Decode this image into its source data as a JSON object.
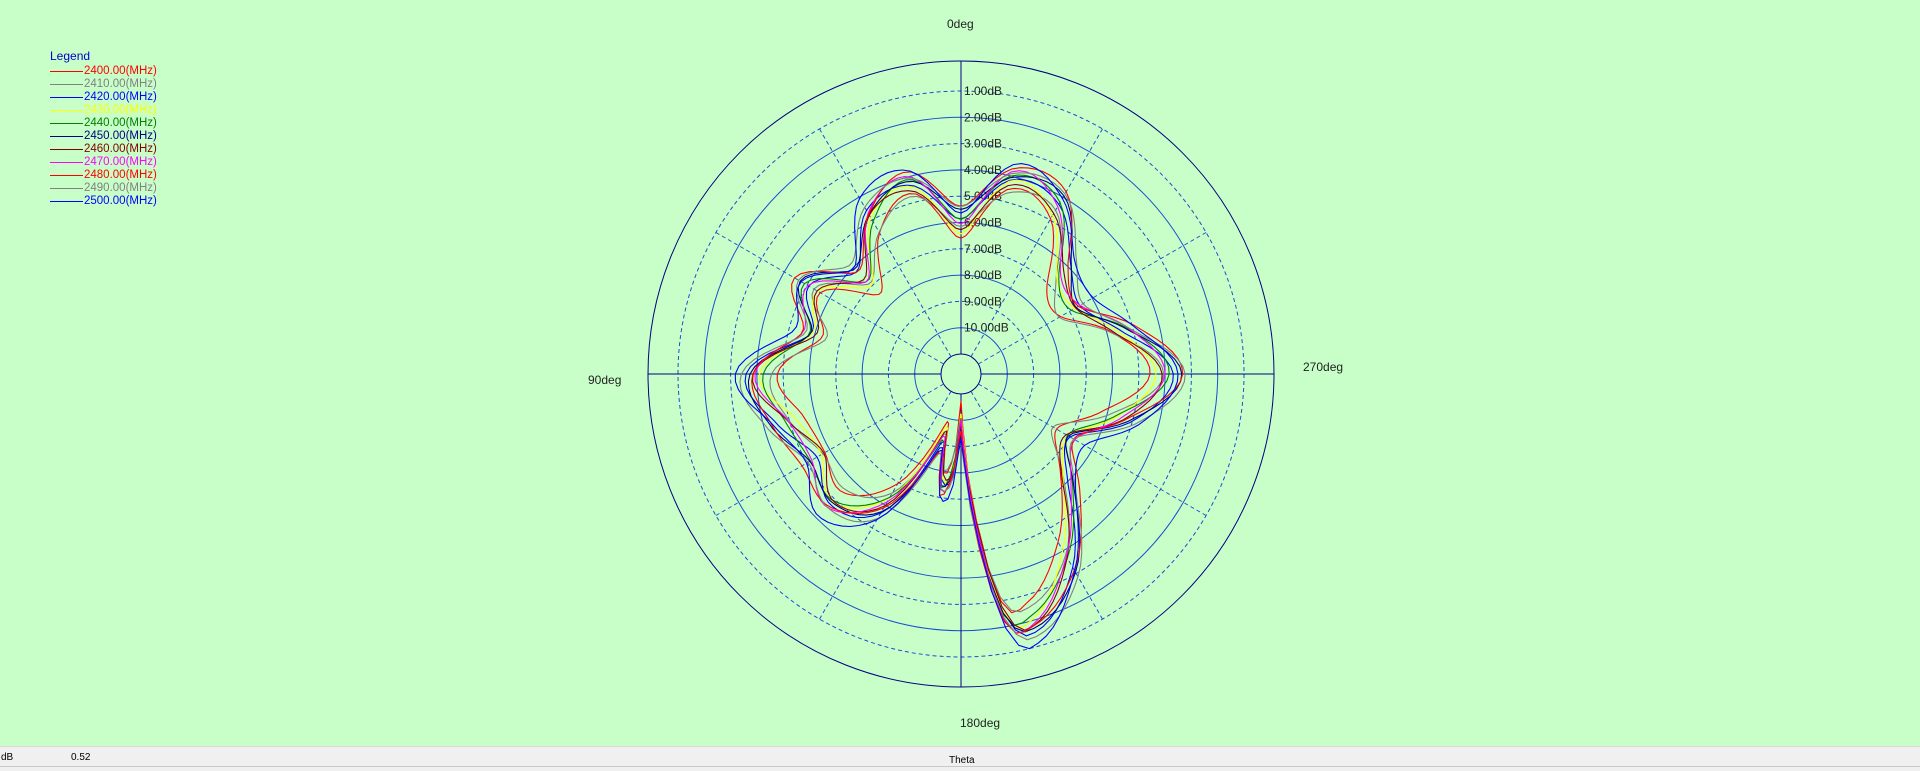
{
  "chart_data": {
    "type": "line",
    "coordinate_system": "polar",
    "angle_direction": "counter-clockwise",
    "zero_angle_at": "top",
    "angle_labels": [
      "0deg",
      "90deg",
      "180deg",
      "270deg"
    ],
    "radial_labels": [
      "1.00dB",
      "2.00dB",
      "3.00dB",
      "4.00dB",
      "5.00dB",
      "6.00dB",
      "7.00dB",
      "8.00dB",
      "9.00dB",
      "10.00dB"
    ],
    "radial_range_db": [
      -11,
      -1
    ],
    "legend_title": "Legend",
    "legend_position": "top-left",
    "theta_samples_deg": [
      0,
      15,
      30,
      45,
      60,
      75,
      90,
      105,
      120,
      135,
      150,
      165,
      170,
      175,
      180,
      185,
      190,
      195,
      210,
      225,
      240,
      255,
      270,
      285,
      300,
      315,
      330,
      345
    ],
    "base_pattern_db": [
      -6.0,
      -4.3,
      -4.9,
      -6.6,
      -5.1,
      -5.9,
      -4.0,
      -4.8,
      -5.4,
      -4.9,
      -6.1,
      -9.3,
      -7.6,
      -8.0,
      -9.9,
      -6.5,
      -2.6,
      -1.9,
      -3.6,
      -6.0,
      -7.1,
      -5.4,
      -3.9,
      -5.4,
      -6.8,
      -6.3,
      -4.4,
      -4.1
    ],
    "series": [
      {
        "name": "2400.00(MHz)",
        "color": "#ff0000",
        "offset_db": -0.6
      },
      {
        "name": "2410.00(MHz)",
        "color": "#808080",
        "offset_db": -0.4
      },
      {
        "name": "2420.00(MHz)",
        "color": "#0000ff",
        "offset_db": 0.2
      },
      {
        "name": "2430.00(MHz)",
        "color": "#ffff00",
        "offset_db": -0.2
      },
      {
        "name": "2440.00(MHz)",
        "color": "#008000",
        "offset_db": 0.0
      },
      {
        "name": "2450.00(MHz)",
        "color": "#000080",
        "offset_db": 0.3
      },
      {
        "name": "2460.00(MHz)",
        "color": "#800000",
        "offset_db": -0.1
      },
      {
        "name": "2470.00(MHz)",
        "color": "#ff00ff",
        "offset_db": 0.1
      },
      {
        "name": "2480.00(MHz)",
        "color": "#ff0000",
        "offset_db": 0.4
      },
      {
        "name": "2490.00(MHz)",
        "color": "#808080",
        "offset_db": 0.5
      },
      {
        "name": "2500.00(MHz)",
        "color": "#0000ff",
        "offset_db": 0.6
      }
    ],
    "grid": true
  },
  "status": {
    "unit": "dB",
    "value": "0.52",
    "axis_name": "Theta"
  }
}
